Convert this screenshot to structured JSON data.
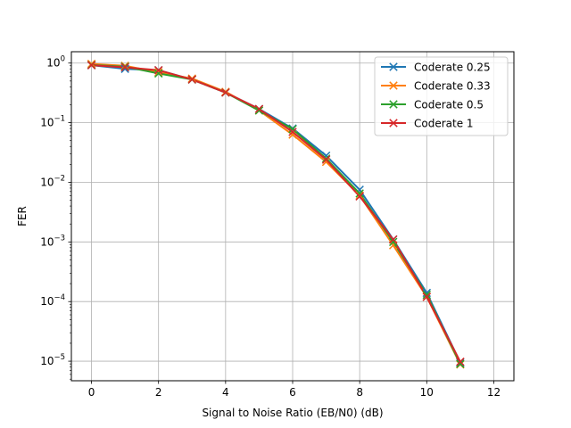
{
  "chart_data": {
    "type": "line",
    "title": "",
    "xlabel": "Signal to Noise Ratio (EB/N0) (dB)",
    "ylabel": "FER",
    "xlim": [
      -0.6,
      12.6
    ],
    "ylim": [
      4.7e-06,
      1.55
    ],
    "yscale": "log",
    "grid": true,
    "legend_position": "top-right",
    "x_ticks": [
      0,
      2,
      4,
      6,
      8,
      10,
      12
    ],
    "y_ticks": [
      {
        "value": 1e-05,
        "mantissa": "10",
        "exp": "−5"
      },
      {
        "value": 0.0001,
        "mantissa": "10",
        "exp": "−4"
      },
      {
        "value": 0.001,
        "mantissa": "10",
        "exp": "−3"
      },
      {
        "value": 0.01,
        "mantissa": "10",
        "exp": "−2"
      },
      {
        "value": 0.1,
        "mantissa": "10",
        "exp": "−1"
      },
      {
        "value": 1,
        "mantissa": "10",
        "exp": "0"
      }
    ],
    "marker": "x",
    "series": [
      {
        "name": "Coderate 0.25",
        "color": "#1f77b4",
        "x": [
          0,
          1,
          2,
          3,
          4,
          5,
          6,
          7,
          8,
          9,
          10,
          11
        ],
        "y": [
          0.92,
          0.8,
          0.76,
          0.53,
          0.32,
          0.17,
          0.08,
          0.028,
          0.0075,
          0.0011,
          0.00014,
          9.5e-06
        ]
      },
      {
        "name": "Coderate 0.33",
        "color": "#ff7f0e",
        "x": [
          0,
          1,
          2,
          3,
          4,
          5,
          6,
          7,
          8,
          9,
          10,
          11
        ],
        "y": [
          0.97,
          0.9,
          0.7,
          0.55,
          0.33,
          0.16,
          0.063,
          0.022,
          0.006,
          0.00088,
          0.00012,
          8.8e-06
        ]
      },
      {
        "name": "Coderate 0.5",
        "color": "#2ca02c",
        "x": [
          0,
          1,
          2,
          3,
          4,
          5,
          6,
          7,
          8,
          9,
          10,
          11
        ],
        "y": [
          0.93,
          0.87,
          0.67,
          0.53,
          0.32,
          0.16,
          0.078,
          0.025,
          0.0065,
          0.001,
          0.00013,
          9e-06
        ]
      },
      {
        "name": "Coderate 1",
        "color": "#d62728",
        "x": [
          0,
          1,
          2,
          3,
          4,
          5,
          6,
          7,
          8,
          9,
          10,
          11
        ],
        "y": [
          0.92,
          0.85,
          0.76,
          0.53,
          0.32,
          0.17,
          0.07,
          0.024,
          0.0058,
          0.0011,
          0.00012,
          9.8e-06
        ]
      }
    ]
  }
}
